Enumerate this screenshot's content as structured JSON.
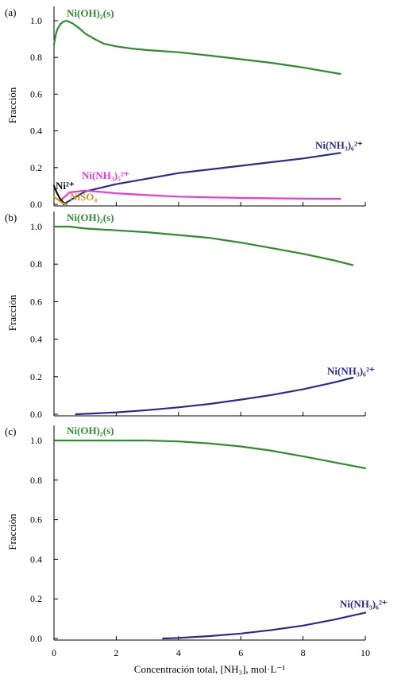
{
  "figure": {
    "xlabel": "Concentración total, [NH₃], mol·L⁻¹",
    "x_ticks": [
      "0",
      "2",
      "4",
      "6",
      "8",
      "10"
    ]
  },
  "chart_data": [
    {
      "type": "line",
      "panel_label": "(a)",
      "ylabel": "Fracción",
      "xlim": [
        0,
        10
      ],
      "ylim": [
        0,
        1.05
      ],
      "y_ticks": [
        "0.0",
        "0.2",
        "0.4",
        "0.6",
        "0.8",
        "1.0"
      ],
      "grid": false,
      "series": [
        {
          "name": "Ni(OH)₂(s)",
          "color": "#2e8b2e",
          "x": [
            0,
            0.05,
            0.1,
            0.2,
            0.3,
            0.4,
            0.6,
            0.8,
            1.0,
            1.3,
            1.6,
            2.0,
            2.5,
            3,
            4,
            5,
            6,
            7,
            8,
            9.2
          ],
          "y": [
            0.87,
            0.92,
            0.95,
            0.98,
            0.995,
            1.0,
            0.985,
            0.96,
            0.93,
            0.9,
            0.875,
            0.86,
            0.848,
            0.84,
            0.828,
            0.81,
            0.79,
            0.77,
            0.745,
            0.71
          ]
        },
        {
          "name": "Ni(NH₃)₆²⁺",
          "color": "#2b2b8c",
          "x": [
            0.3,
            1,
            2,
            3,
            4,
            5,
            6,
            7,
            8,
            9.2
          ],
          "y": [
            0.0,
            0.07,
            0.11,
            0.14,
            0.17,
            0.19,
            0.21,
            0.23,
            0.25,
            0.28
          ]
        },
        {
          "name": "Ni(NH₃)₅²⁺",
          "color": "#e83ad6",
          "x": [
            0.2,
            0.5,
            1,
            1.5,
            2,
            3,
            4,
            5,
            6,
            7,
            8,
            9.2
          ],
          "y": [
            0.02,
            0.065,
            0.075,
            0.068,
            0.06,
            0.05,
            0.042,
            0.038,
            0.035,
            0.033,
            0.031,
            0.03
          ]
        },
        {
          "name": "Ni²⁺",
          "color": "#111111",
          "x": [
            0,
            0.1,
            0.2,
            0.3,
            0.4
          ],
          "y": [
            0.1,
            0.06,
            0.03,
            0.01,
            0.0
          ]
        },
        {
          "name": "NiSO₄",
          "color": "#c89a1a",
          "x": [
            0,
            0.1,
            0.2,
            0.3,
            0.4
          ],
          "y": [
            0.04,
            0.03,
            0.015,
            0.005,
            0.0
          ]
        }
      ]
    },
    {
      "type": "line",
      "panel_label": "(b)",
      "ylabel": "Fracción",
      "xlim": [
        0,
        10
      ],
      "ylim": [
        0,
        1.05
      ],
      "y_ticks": [
        "0.0",
        "0.2",
        "0.4",
        "0.6",
        "0.8",
        "1.0"
      ],
      "grid": false,
      "series": [
        {
          "name": "Ni(OH)₂(s)",
          "color": "#2e8b2e",
          "x": [
            0,
            0.5,
            1,
            2,
            3,
            4,
            5,
            6,
            7,
            8,
            9,
            9.6
          ],
          "y": [
            1.0,
            1.0,
            0.99,
            0.98,
            0.97,
            0.955,
            0.94,
            0.915,
            0.885,
            0.855,
            0.82,
            0.795
          ]
        },
        {
          "name": "Ni(NH₃)₆²⁺",
          "color": "#2b2b8c",
          "x": [
            0.7,
            1,
            2,
            3,
            4,
            5,
            6,
            7,
            8,
            9,
            9.6
          ],
          "y": [
            0.0,
            0.002,
            0.01,
            0.022,
            0.037,
            0.055,
            0.078,
            0.103,
            0.133,
            0.17,
            0.195
          ]
        }
      ]
    },
    {
      "type": "line",
      "panel_label": "(c)",
      "ylabel": "Fracción",
      "xlim": [
        0,
        10
      ],
      "ylim": [
        0,
        1.05
      ],
      "y_ticks": [
        "0.0",
        "0.2",
        "0.4",
        "0.6",
        "0.8",
        "1.0"
      ],
      "grid": false,
      "series": [
        {
          "name": "Ni(OH)₂(s)",
          "color": "#2e8b2e",
          "x": [
            0,
            1,
            2,
            3,
            4,
            5,
            6,
            7,
            8,
            9,
            10
          ],
          "y": [
            1.0,
            1.0,
            1.0,
            1.0,
            0.995,
            0.985,
            0.97,
            0.948,
            0.92,
            0.89,
            0.86
          ]
        },
        {
          "name": "Ni(NH₃)₆²⁺",
          "color": "#2b2b8c",
          "x": [
            3.5,
            4,
            5,
            6,
            7,
            8,
            9,
            10
          ],
          "y": [
            0.0,
            0.003,
            0.012,
            0.025,
            0.043,
            0.065,
            0.095,
            0.13
          ]
        }
      ]
    }
  ]
}
